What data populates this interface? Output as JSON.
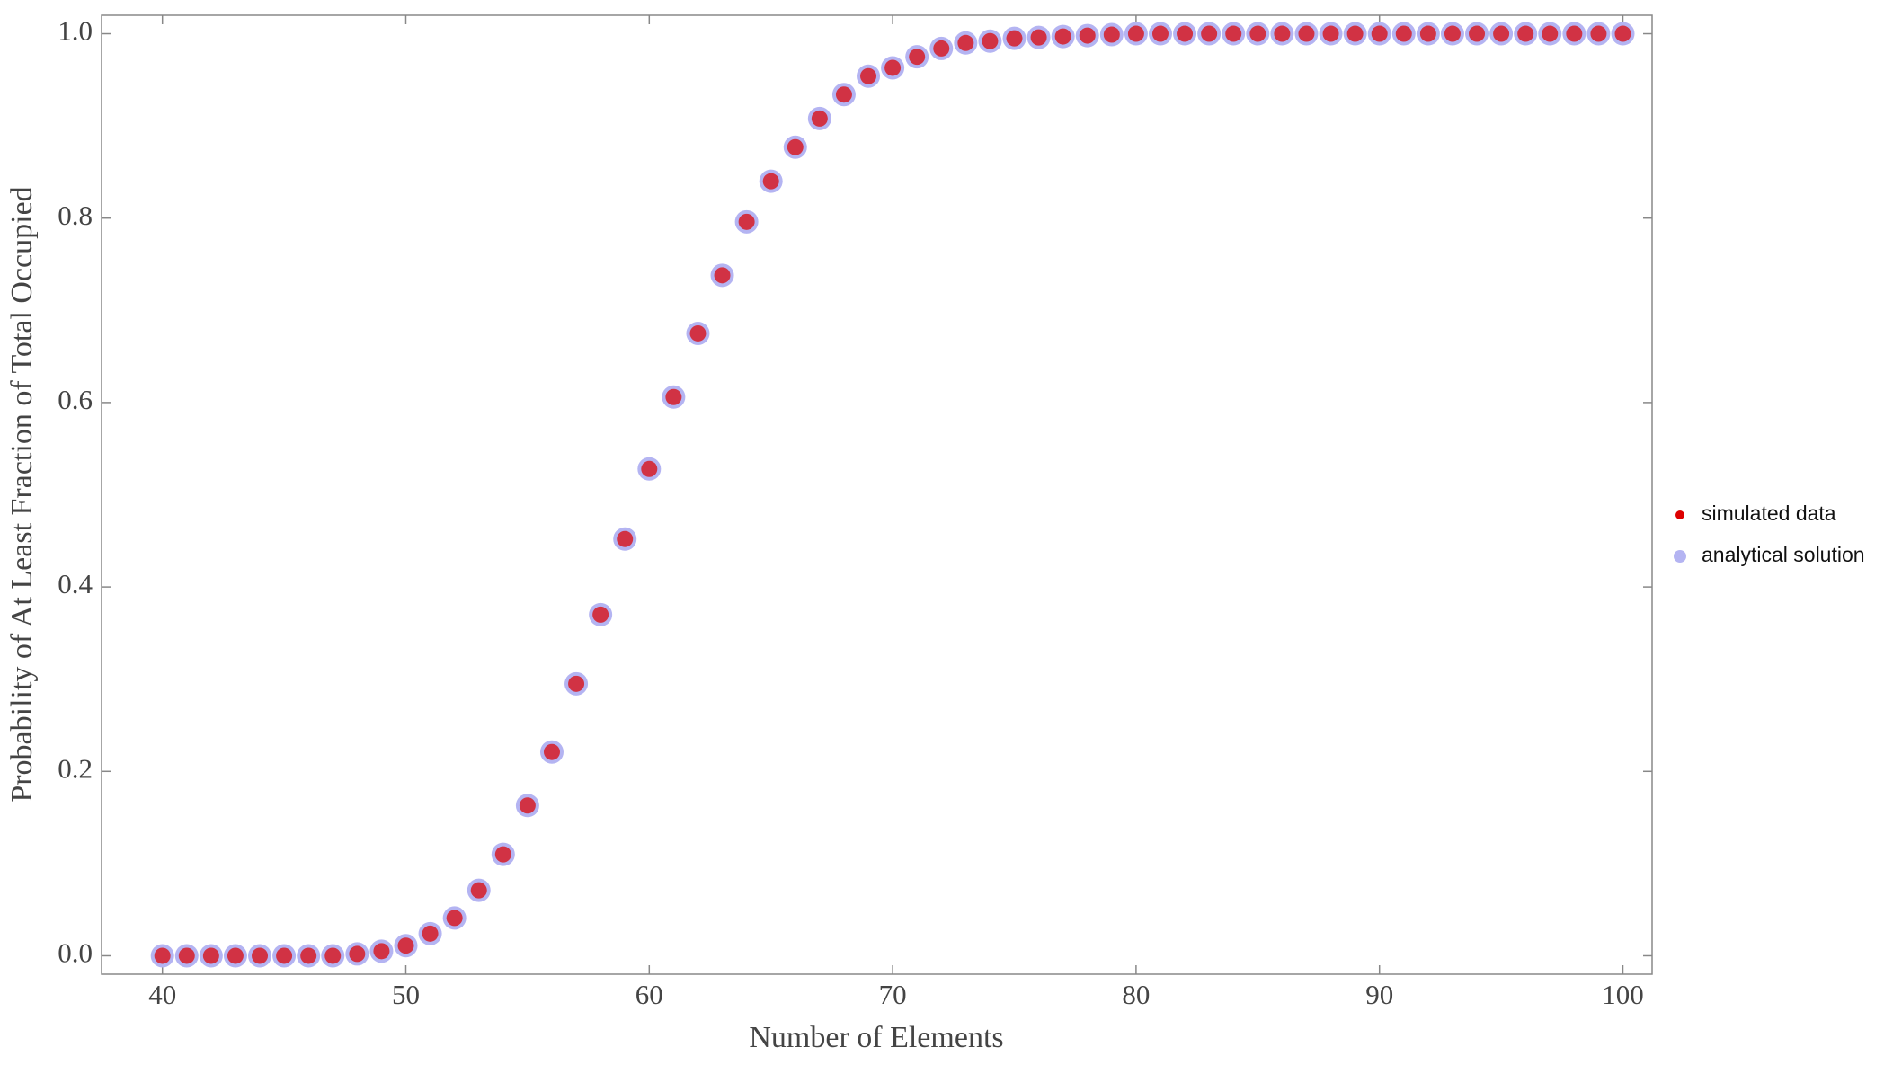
{
  "chart_data": {
    "type": "scatter",
    "x_label": "Number of Elements",
    "y_label": "Probability of At Least Fraction of Total Occupied",
    "x": [
      40,
      41,
      42,
      43,
      44,
      45,
      46,
      47,
      48,
      49,
      50,
      51,
      52,
      53,
      54,
      55,
      56,
      57,
      58,
      59,
      60,
      61,
      62,
      63,
      64,
      65,
      66,
      67,
      68,
      69,
      70,
      71,
      72,
      73,
      74,
      75,
      76,
      77,
      78,
      79,
      80,
      81,
      82,
      83,
      84,
      85,
      86,
      87,
      88,
      89,
      90,
      91,
      92,
      93,
      94,
      95,
      96,
      97,
      98,
      99,
      100
    ],
    "series": [
      {
        "name": "analytical solution",
        "color": "#b4b4f2",
        "values": [
          0,
          0,
          0,
          0,
          0,
          0,
          0,
          0,
          0.002,
          0.005,
          0.011,
          0.024,
          0.041,
          0.071,
          0.11,
          0.163,
          0.221,
          0.295,
          0.37,
          0.452,
          0.528,
          0.606,
          0.675,
          0.738,
          0.796,
          0.84,
          0.877,
          0.908,
          0.934,
          0.954,
          0.963,
          0.975,
          0.984,
          0.99,
          0.992,
          0.995,
          0.996,
          0.997,
          0.998,
          0.999,
          1,
          1,
          1,
          1,
          1,
          1,
          1,
          1,
          1,
          1,
          1,
          1,
          1,
          1,
          1,
          1,
          1,
          1,
          1,
          1,
          1
        ]
      },
      {
        "name": "simulated data",
        "color": "#dd0000",
        "values": [
          0,
          0,
          0,
          0,
          0,
          0,
          0,
          0,
          0.002,
          0.005,
          0.011,
          0.024,
          0.041,
          0.071,
          0.11,
          0.163,
          0.221,
          0.295,
          0.37,
          0.452,
          0.528,
          0.606,
          0.675,
          0.738,
          0.796,
          0.84,
          0.877,
          0.908,
          0.934,
          0.954,
          0.963,
          0.975,
          0.984,
          0.99,
          0.992,
          0.995,
          0.996,
          0.997,
          0.998,
          0.999,
          1,
          1,
          1,
          1,
          1,
          1,
          1,
          1,
          1,
          1,
          1,
          1,
          1,
          1,
          1,
          1,
          1,
          1,
          1,
          1,
          1
        ]
      }
    ],
    "xlim": [
      37.5,
      101.2
    ],
    "ylim": [
      -0.02,
      1.02
    ],
    "xticks": [
      40,
      50,
      60,
      70,
      80,
      90,
      100
    ],
    "yticks": [
      {
        "value": 0,
        "label": "0.0"
      },
      0.2,
      0.4,
      0.6,
      0.8,
      {
        "value": 1,
        "label": "1.0"
      }
    ],
    "legend": "right"
  }
}
